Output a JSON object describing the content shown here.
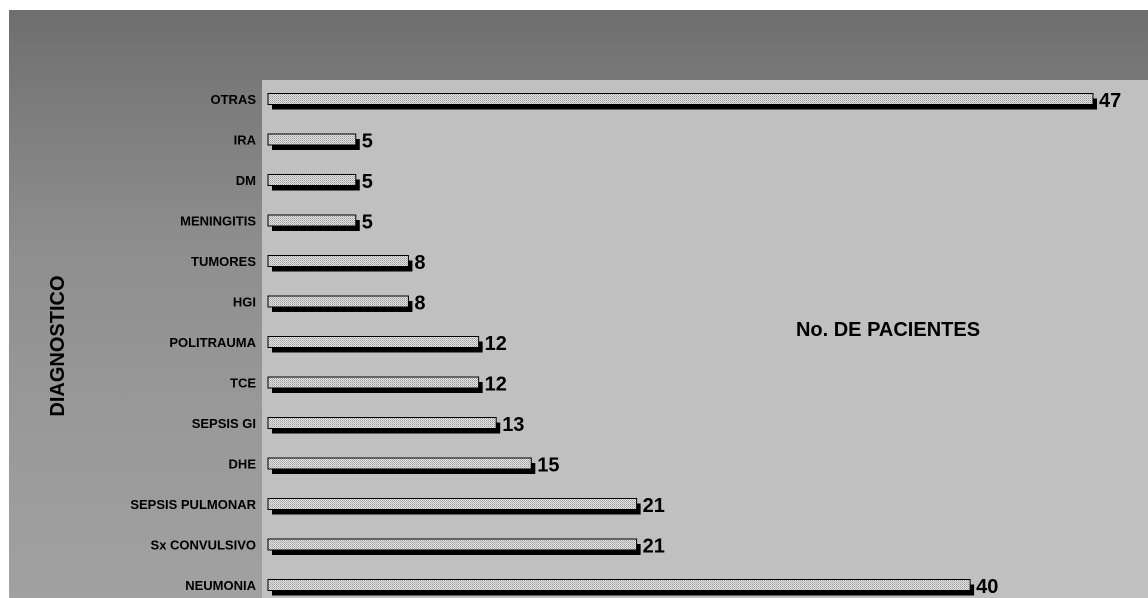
{
  "chart_data": {
    "type": "bar",
    "orientation": "horizontal",
    "categories": [
      "NEUMONIA",
      "Sx CONVULSIVO",
      "SEPSIS PULMONAR",
      "DHE",
      "SEPSIS GI",
      "TCE",
      "POLITRAUMA",
      "HGI",
      "TUMORES",
      "MENINGITIS",
      "DM",
      "IRA",
      "OTRAS"
    ],
    "values": [
      40,
      21,
      21,
      15,
      13,
      12,
      12,
      8,
      8,
      5,
      5,
      5,
      47
    ],
    "title": "",
    "xlabel": "No. DE PACIENTES",
    "ylabel": "DIAGNOSTICO",
    "xlim": [
      0,
      47
    ],
    "data_labels": true,
    "grid": false,
    "legend": "none",
    "colors": {
      "bar_fill": "#e6e6e6",
      "bar_shadow": "#000000",
      "plot_area": "#c0c0c0",
      "frame": "#8a8a8a"
    }
  }
}
